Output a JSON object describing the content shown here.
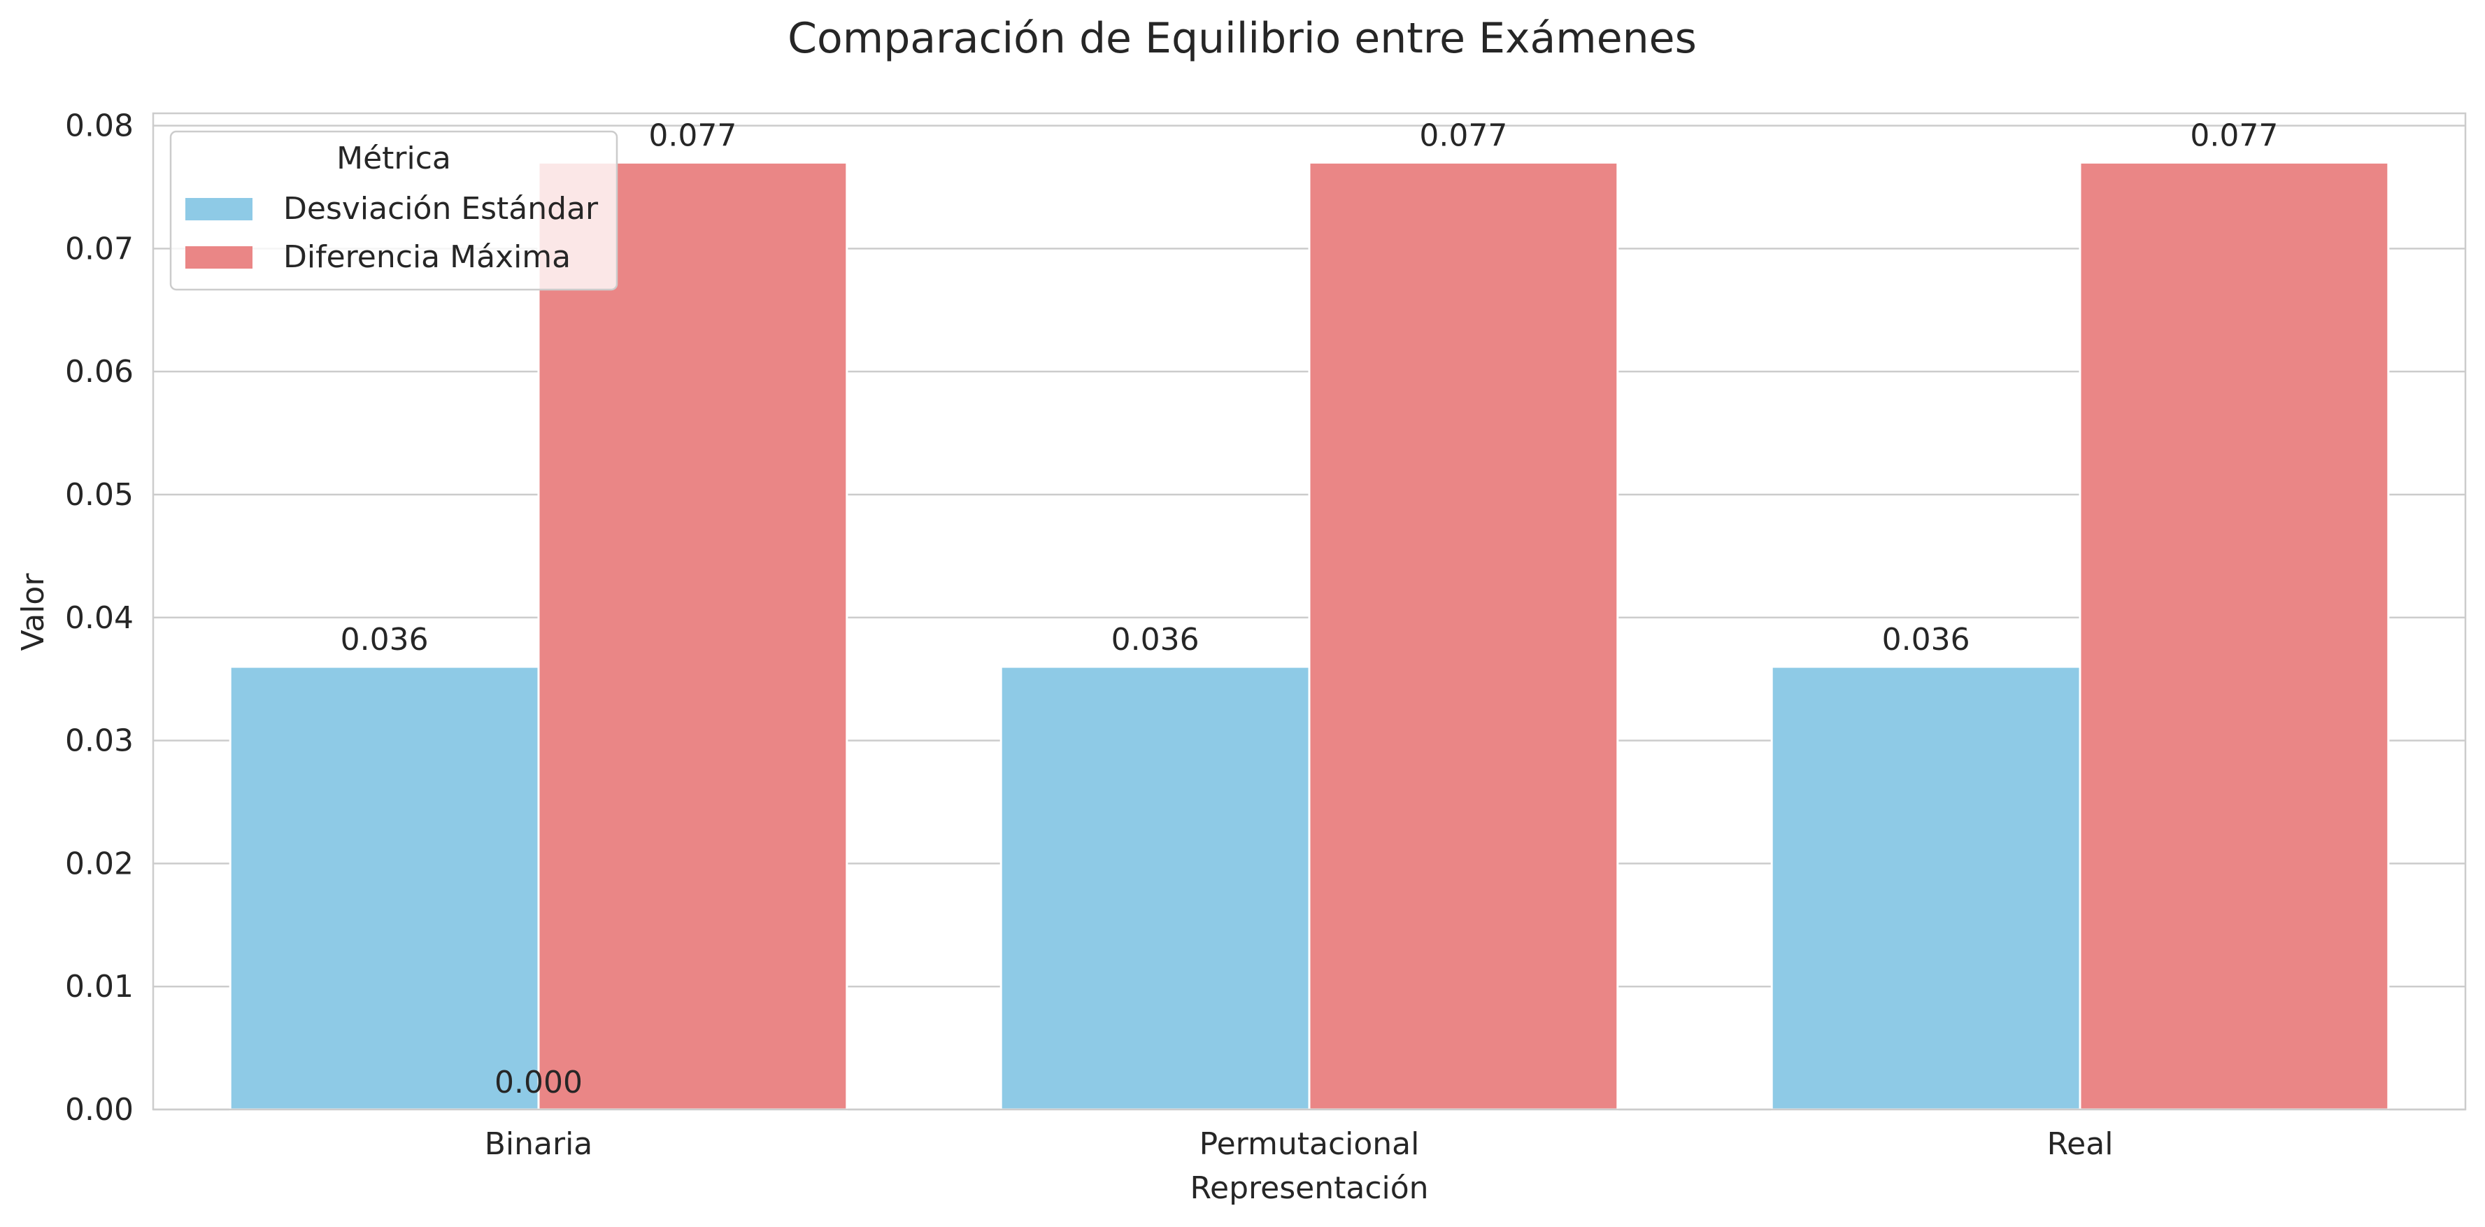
{
  "chart_data": {
    "type": "bar",
    "title": "Comparación de Equilibrio entre Exámenes",
    "xlabel": "Representación",
    "ylabel": "Valor",
    "categories": [
      "Binaria",
      "Permutacional",
      "Real"
    ],
    "ylim": [
      0,
      0.081
    ],
    "yticks": [
      0.0,
      0.01,
      0.02,
      0.03,
      0.04,
      0.05,
      0.06,
      0.07,
      0.08
    ],
    "ytick_labels": [
      "0.00",
      "0.01",
      "0.02",
      "0.03",
      "0.04",
      "0.05",
      "0.06",
      "0.07",
      "0.08"
    ],
    "grid": true,
    "legend": {
      "title": "Métrica",
      "position": "top-left"
    },
    "series": [
      {
        "name": "Desviación Estándar",
        "color": "#8ecae6",
        "values": [
          0.036,
          0.036,
          0.036
        ],
        "labels": [
          "0.036",
          "0.036",
          "0.036"
        ]
      },
      {
        "name": "Diferencia Máxima",
        "color": "#ea8686",
        "values": [
          0.077,
          0.077,
          0.077
        ],
        "labels": [
          "0.077",
          "0.077",
          "0.077"
        ]
      }
    ],
    "extra_annotations": [
      {
        "text": "0.000",
        "category_index": 0,
        "value": 0.0
      }
    ]
  }
}
